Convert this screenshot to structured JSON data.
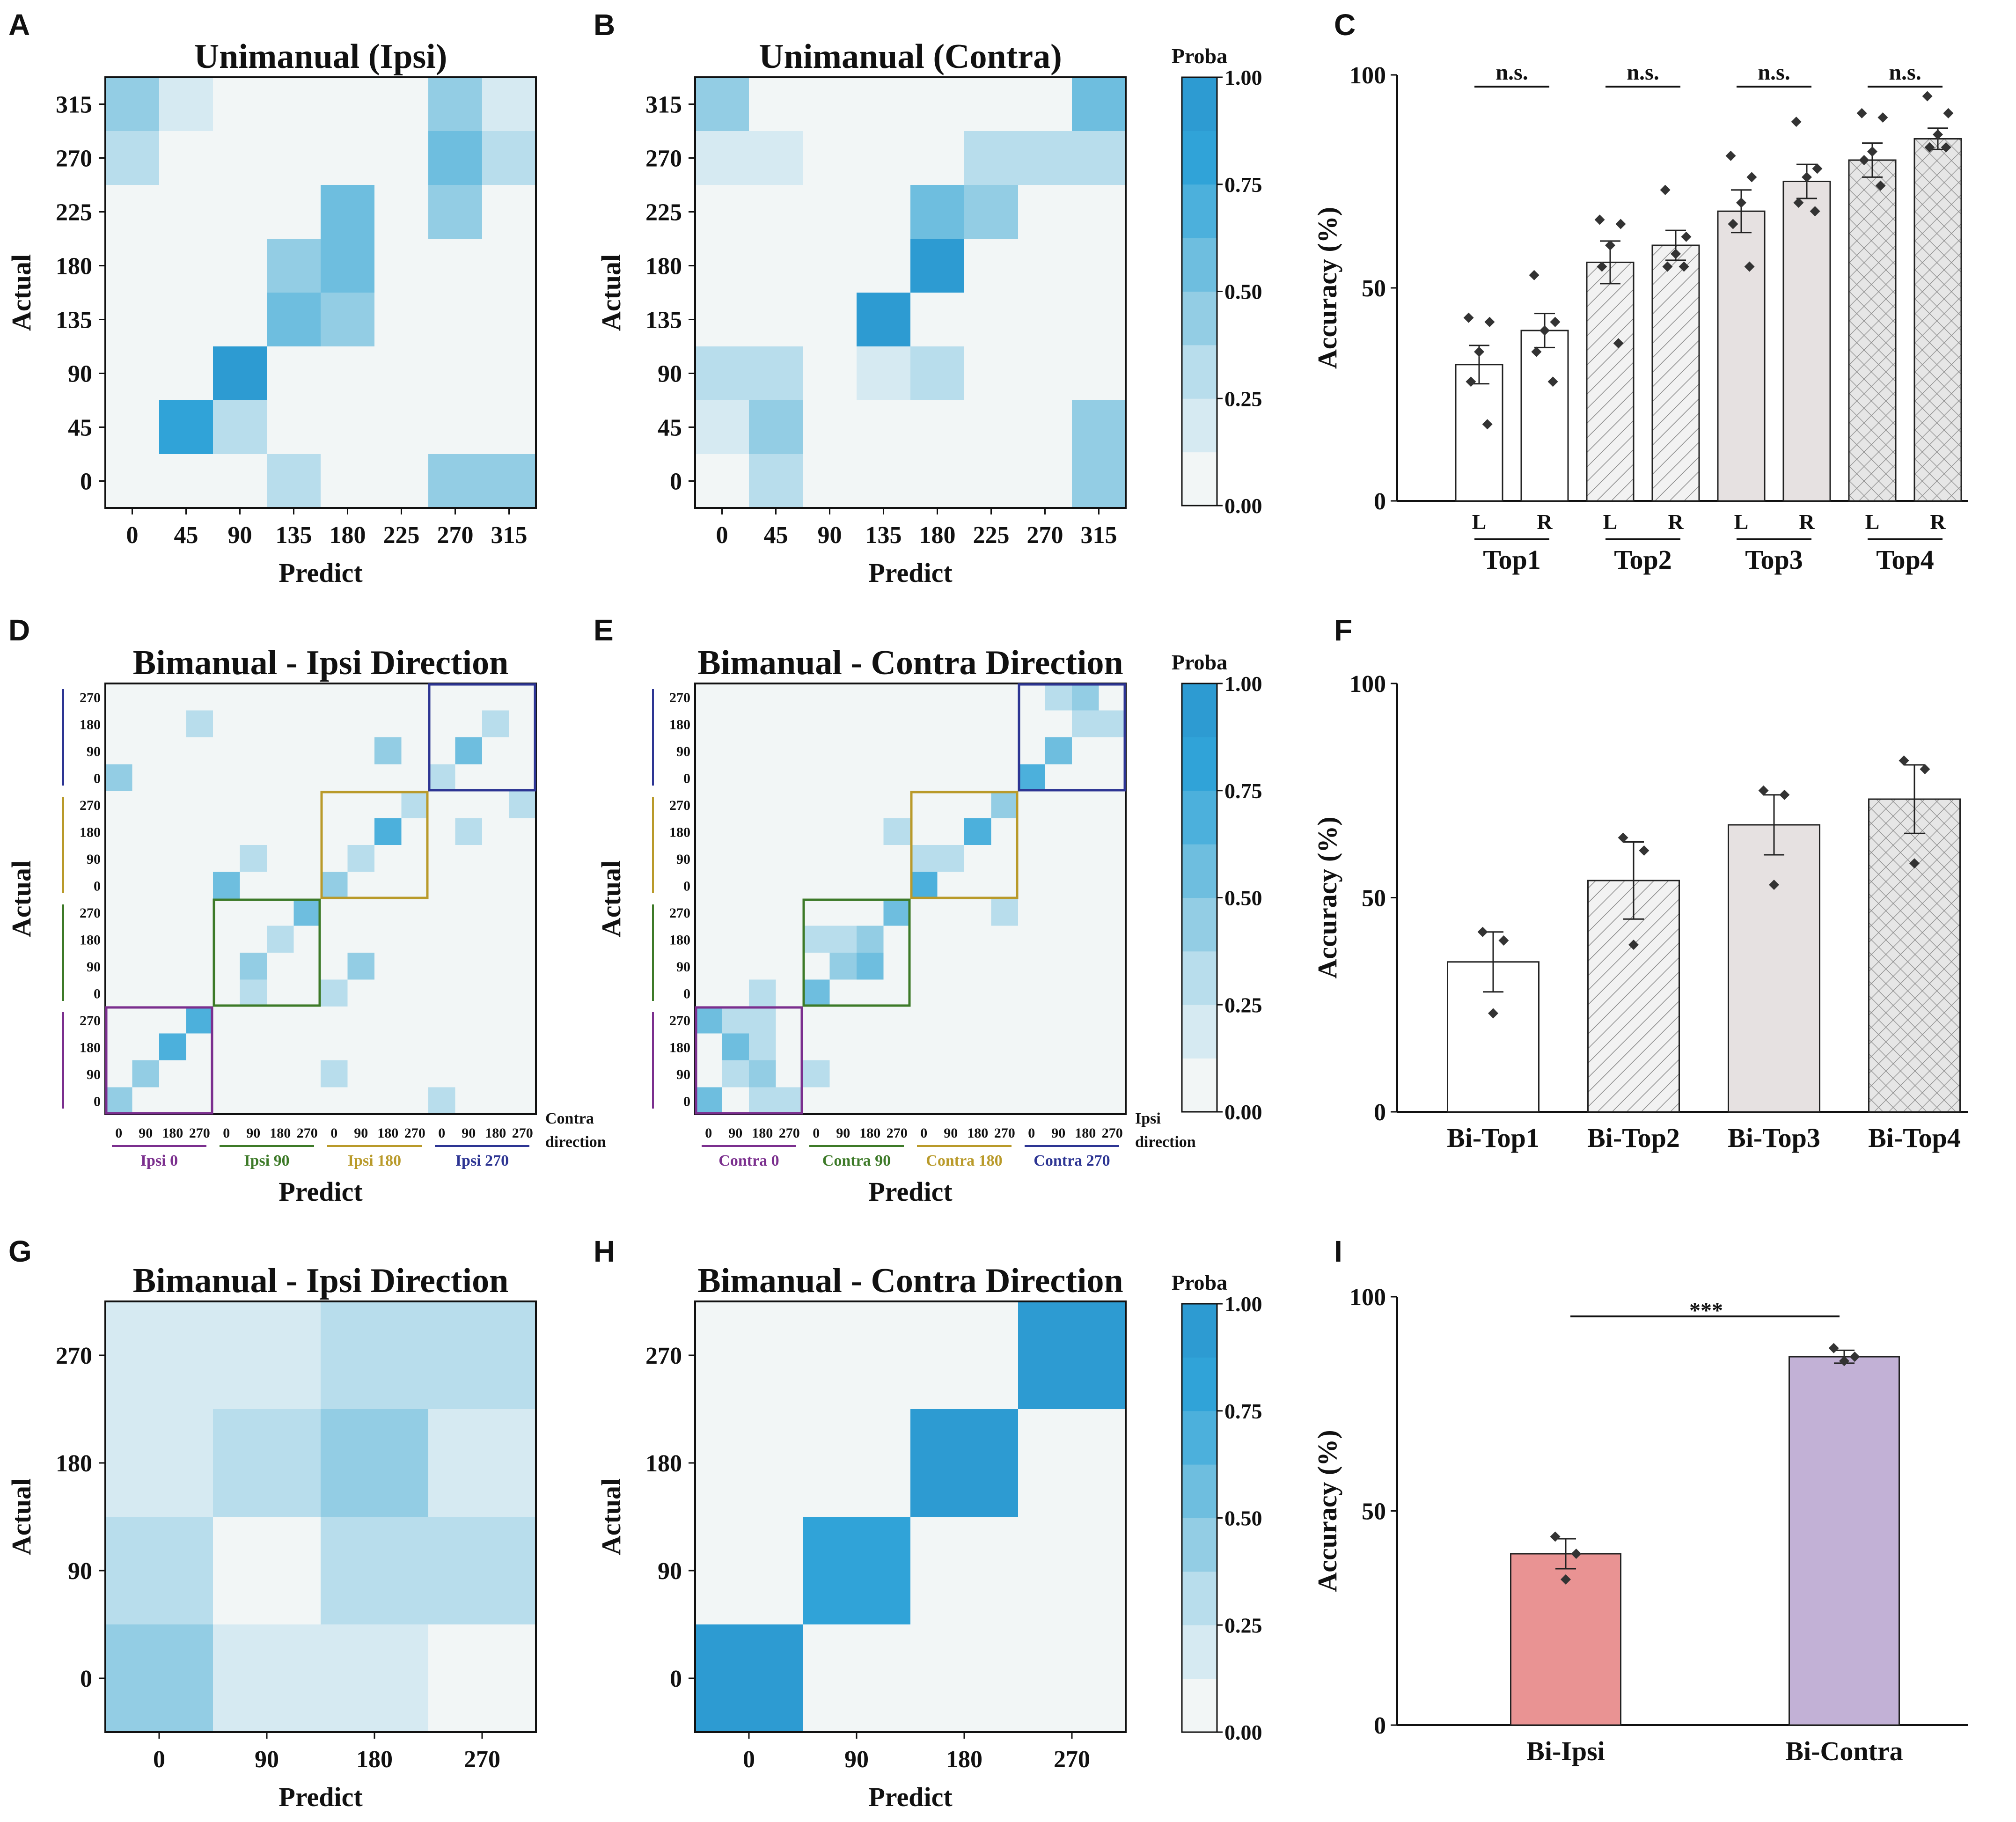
{
  "colorscale": {
    "label": "Proba",
    "ticks": [
      "0.00",
      "0.25",
      "0.50",
      "0.75",
      "1.00"
    ],
    "stops": [
      "#f2f6f6",
      "#d6eaf2",
      "#b8ddec",
      "#93cde4",
      "#6ebedf",
      "#4cb0dc",
      "#30a3d8",
      "#2d9bd2"
    ],
    "tick_values": [
      0,
      0.25,
      0.5,
      0.75,
      1
    ]
  },
  "chart_data": [
    {
      "id": "A",
      "type": "heatmap",
      "panel_letter": "A",
      "title": "Unimanual (Ipsi)",
      "xlabel": "Predict",
      "ylabel": "Actual",
      "xticks": [
        "0",
        "45",
        "90",
        "135",
        "180",
        "225",
        "270",
        "315"
      ],
      "yticks": [
        "315",
        "270",
        "225",
        "180",
        "135",
        "90",
        "45",
        "0"
      ],
      "values": [
        [
          0.4,
          0.15,
          0,
          0,
          0,
          0,
          0.4,
          0.15
        ],
        [
          0.28,
          0,
          0,
          0,
          0,
          0,
          0.55,
          0.3
        ],
        [
          0,
          0,
          0.12,
          0,
          0.5,
          0,
          0.38,
          0
        ],
        [
          0.12,
          0,
          0,
          0.4,
          0.5,
          0.12,
          0,
          0
        ],
        [
          0.12,
          0,
          0,
          0.5,
          0.4,
          0,
          0,
          0
        ],
        [
          0.12,
          0,
          0.9,
          0,
          0,
          0,
          0,
          0
        ],
        [
          0,
          0.75,
          0.28,
          0,
          0,
          0,
          0,
          0
        ],
        [
          0,
          0,
          0,
          0.28,
          0,
          0,
          0.4,
          0.4
        ]
      ]
    },
    {
      "id": "B",
      "type": "heatmap",
      "panel_letter": "B",
      "title": "Unimanual (Contra)",
      "xlabel": "Predict",
      "ylabel": "Actual",
      "xticks": [
        "0",
        "45",
        "90",
        "135",
        "180",
        "225",
        "270",
        "315"
      ],
      "yticks": [
        "315",
        "270",
        "225",
        "180",
        "135",
        "90",
        "45",
        "0"
      ],
      "values": [
        [
          0.38,
          0,
          0,
          0,
          0,
          0,
          0.12,
          0.55
        ],
        [
          0.15,
          0.15,
          0,
          0,
          0,
          0.25,
          0.25,
          0.25
        ],
        [
          0,
          0,
          0,
          0,
          0.5,
          0.4,
          0.12,
          0
        ],
        [
          0,
          0,
          0,
          0.12,
          0.9,
          0,
          0,
          0
        ],
        [
          0,
          0,
          0,
          0.9,
          0,
          0.12,
          0,
          0
        ],
        [
          0.25,
          0.25,
          0,
          0.15,
          0.28,
          0,
          0.12,
          0
        ],
        [
          0.15,
          0.38,
          0.12,
          0,
          0,
          0,
          0,
          0.4
        ],
        [
          0.12,
          0.28,
          0,
          0,
          0,
          0.12,
          0.12,
          0.4
        ]
      ]
    },
    {
      "id": "C",
      "type": "bar",
      "panel_letter": "C",
      "ylabel": "Accuracy (%)",
      "ylim": [
        0,
        100
      ],
      "yticks": [
        0,
        50,
        100
      ],
      "groups": [
        "Top1",
        "Top2",
        "Top3",
        "Top4"
      ],
      "bars": [
        {
          "label": "L",
          "group": "Top1",
          "value": 32,
          "sem": 4.5,
          "points": [
            43,
            42,
            35,
            28,
            18
          ]
        },
        {
          "label": "R",
          "group": "Top1",
          "value": 40,
          "sem": 4,
          "points": [
            53,
            42,
            40,
            35,
            28
          ]
        },
        {
          "label": "L",
          "group": "Top2",
          "value": 56,
          "sem": 5,
          "points": [
            66,
            65,
            60,
            55,
            37
          ]
        },
        {
          "label": "R",
          "group": "Top2",
          "value": 60,
          "sem": 3.5,
          "points": [
            73,
            62,
            58,
            55,
            55
          ]
        },
        {
          "label": "L",
          "group": "Top3",
          "value": 68,
          "sem": 5,
          "points": [
            81,
            76,
            70,
            65,
            55
          ]
        },
        {
          "label": "R",
          "group": "Top3",
          "value": 75,
          "sem": 4,
          "points": [
            89,
            78,
            76,
            70,
            68
          ]
        },
        {
          "label": "L",
          "group": "Top4",
          "value": 80,
          "sem": 4,
          "points": [
            91,
            90,
            82,
            80,
            74
          ]
        },
        {
          "label": "R",
          "group": "Top4",
          "value": 85,
          "sem": 2.5,
          "points": [
            95,
            91,
            86,
            83,
            83
          ]
        }
      ],
      "significance": [
        "n.s.",
        "n.s.",
        "n.s.",
        "n.s."
      ]
    },
    {
      "id": "D",
      "type": "heatmap",
      "panel_letter": "D",
      "title": "Bimanual - Ipsi Direction",
      "xlabel": "Predict",
      "ylabel": "Actual",
      "sub_ticks": [
        "0",
        "90",
        "180",
        "270"
      ],
      "group_labels": [
        "Ipsi 0",
        "Ipsi 90",
        "Ipsi 180",
        "Ipsi 270"
      ],
      "side_label": [
        "Contra",
        "direction"
      ],
      "values": [
        [
          0.1,
          0,
          0,
          0.1,
          0,
          0,
          0,
          0,
          0,
          0,
          0,
          0,
          0,
          0.1,
          0,
          0.1
        ],
        [
          0,
          0.1,
          0.1,
          0.25,
          0,
          0,
          0,
          0,
          0,
          0,
          0,
          0,
          0,
          0.1,
          0.25,
          0.1
        ],
        [
          0,
          0,
          0,
          0,
          0,
          0,
          0,
          0,
          0,
          0,
          0.4,
          0,
          0.12,
          0.6,
          0,
          0
        ],
        [
          0.4,
          0,
          0,
          0,
          0.1,
          0,
          0,
          0,
          0,
          0,
          0,
          0,
          0.25,
          0,
          0,
          0
        ],
        [
          0,
          0,
          0.1,
          0.1,
          0.1,
          0,
          0,
          0.1,
          0,
          0,
          0,
          0.25,
          0,
          0,
          0,
          0.25
        ],
        [
          0,
          0,
          0,
          0,
          0,
          0,
          0,
          0,
          0,
          0,
          0.7,
          0,
          0,
          0.25,
          0,
          0
        ],
        [
          0,
          0.1,
          0.1,
          0,
          0.1,
          0.25,
          0,
          0,
          0.1,
          0.25,
          0,
          0,
          0,
          0,
          0,
          0
        ],
        [
          0,
          0,
          0,
          0,
          0.6,
          0,
          0,
          0,
          0.4,
          0.1,
          0,
          0,
          0,
          0,
          0,
          0
        ],
        [
          0,
          0,
          0,
          0.1,
          0.1,
          0,
          0.1,
          0.6,
          0,
          0,
          0.1,
          0,
          0,
          0,
          0,
          0
        ],
        [
          0,
          0.1,
          0.1,
          0.1,
          0,
          0.1,
          0.25,
          0,
          0,
          0,
          0.1,
          0,
          0,
          0,
          0.1,
          0
        ],
        [
          0,
          0,
          0,
          0,
          0.1,
          0.4,
          0,
          0,
          0,
          0.4,
          0,
          0,
          0,
          0,
          0,
          0
        ],
        [
          0,
          0,
          0,
          0,
          0,
          0.25,
          0,
          0,
          0.25,
          0,
          0,
          0,
          0.1,
          0.1,
          0,
          0.1
        ],
        [
          0,
          0,
          0,
          0.7,
          0,
          0,
          0,
          0,
          0,
          0,
          0,
          0,
          0,
          0,
          0,
          0.1
        ],
        [
          0,
          0,
          0.7,
          0,
          0,
          0,
          0,
          0.1,
          0,
          0,
          0,
          0,
          0,
          0,
          0.1,
          0
        ],
        [
          0,
          0.4,
          0,
          0,
          0,
          0,
          0,
          0,
          0.25,
          0.1,
          0.1,
          0,
          0,
          0,
          0,
          0
        ],
        [
          0.4,
          0,
          0,
          0.1,
          0,
          0,
          0,
          0,
          0,
          0,
          0,
          0,
          0.25,
          0,
          0,
          0
        ]
      ]
    },
    {
      "id": "E",
      "type": "heatmap",
      "panel_letter": "E",
      "title": "Bimanual - Contra Direction",
      "xlabel": "Predict",
      "ylabel": "Actual",
      "sub_ticks": [
        "0",
        "90",
        "180",
        "270"
      ],
      "group_labels": [
        "Contra 0",
        "Contra 90",
        "Contra 180",
        "Contra 270"
      ],
      "side_label": [
        "Ipsi",
        "direction"
      ],
      "values": [
        [
          0.1,
          0,
          0,
          0.1,
          0,
          0,
          0,
          0,
          0,
          0,
          0,
          0,
          0.1,
          0.25,
          0.4,
          0.1
        ],
        [
          0,
          0.1,
          0,
          0,
          0,
          0,
          0,
          0,
          0,
          0,
          0,
          0,
          0.1,
          0.1,
          0.25,
          0.25
        ],
        [
          0,
          0,
          0,
          0,
          0,
          0.1,
          0,
          0,
          0,
          0,
          0.1,
          0,
          0,
          0.6,
          0,
          0
        ],
        [
          0,
          0,
          0,
          0,
          0,
          0,
          0,
          0,
          0,
          0,
          0,
          0,
          0.7,
          0.1,
          0,
          0.1
        ],
        [
          0,
          0,
          0,
          0.1,
          0.1,
          0,
          0,
          0,
          0,
          0,
          0,
          0.4,
          0.1,
          0,
          0,
          0
        ],
        [
          0,
          0,
          0,
          0,
          0,
          0,
          0,
          0.25,
          0.1,
          0,
          0.7,
          0,
          0,
          0,
          0,
          0
        ],
        [
          0,
          0,
          0,
          0,
          0,
          0.1,
          0,
          0,
          0.25,
          0.25,
          0,
          0,
          0,
          0,
          0,
          0
        ],
        [
          0,
          0,
          0,
          0,
          0,
          0,
          0,
          0,
          0.7,
          0,
          0,
          0,
          0,
          0.1,
          0,
          0
        ],
        [
          0,
          0,
          0,
          0,
          0,
          0,
          0,
          0.6,
          0,
          0,
          0,
          0.25,
          0,
          0,
          0,
          0
        ],
        [
          0,
          0.1,
          0,
          0,
          0.25,
          0.25,
          0.4,
          0,
          0,
          0,
          0,
          0,
          0,
          0,
          0,
          0
        ],
        [
          0.1,
          0,
          0,
          0,
          0.1,
          0.4,
          0.5,
          0,
          0,
          0,
          0,
          0,
          0,
          0,
          0,
          0
        ],
        [
          0,
          0,
          0.25,
          0,
          0.6,
          0,
          0,
          0,
          0,
          0,
          0.1,
          0,
          0,
          0,
          0,
          0
        ],
        [
          0.6,
          0.25,
          0.25,
          0,
          0,
          0,
          0,
          0,
          0,
          0,
          0,
          0,
          0,
          0,
          0,
          0
        ],
        [
          0,
          0.5,
          0.25,
          0,
          0,
          0,
          0.1,
          0,
          0,
          0,
          0,
          0,
          0,
          0,
          0,
          0
        ],
        [
          0,
          0.25,
          0.4,
          0,
          0.25,
          0,
          0,
          0,
          0,
          0,
          0,
          0,
          0,
          0,
          0.1,
          0.1
        ],
        [
          0.6,
          0,
          0.25,
          0.25,
          0,
          0,
          0,
          0,
          0,
          0,
          0,
          0,
          0.1,
          0,
          0,
          0
        ]
      ]
    },
    {
      "id": "F",
      "type": "bar",
      "panel_letter": "F",
      "ylabel": "Accuracy (%)",
      "ylim": [
        0,
        100
      ],
      "yticks": [
        0,
        50,
        100
      ],
      "bars": [
        {
          "label": "Bi-Top1",
          "value": 35,
          "sem": 7,
          "points": [
            42,
            40,
            23
          ]
        },
        {
          "label": "Bi-Top2",
          "value": 54,
          "sem": 9,
          "points": [
            64,
            61,
            39
          ]
        },
        {
          "label": "Bi-Top3",
          "value": 67,
          "sem": 7,
          "points": [
            75,
            74,
            53
          ]
        },
        {
          "label": "Bi-Top4",
          "value": 73,
          "sem": 8,
          "points": [
            82,
            80,
            58
          ]
        }
      ]
    },
    {
      "id": "G",
      "type": "heatmap",
      "panel_letter": "G",
      "title": "Bimanual - Ipsi Direction",
      "xlabel": "Predict",
      "ylabel": "Actual",
      "xticks": [
        "0",
        "90",
        "180",
        "270"
      ],
      "yticks": [
        "270",
        "180",
        "90",
        "0"
      ],
      "values": [
        [
          0.15,
          0.15,
          0.28,
          0.28
        ],
        [
          0.15,
          0.28,
          0.38,
          0.15
        ],
        [
          0.28,
          0,
          0.28,
          0.28
        ],
        [
          0.45,
          0.15,
          0.15,
          0
        ]
      ]
    },
    {
      "id": "H",
      "type": "heatmap",
      "panel_letter": "H",
      "title": "Bimanual - Contra Direction",
      "xlabel": "Predict",
      "ylabel": "Actual",
      "xticks": [
        "0",
        "90",
        "180",
        "270"
      ],
      "yticks": [
        "270",
        "180",
        "90",
        "0"
      ],
      "values": [
        [
          0,
          0,
          0,
          0.9
        ],
        [
          0,
          0,
          0.9,
          0
        ],
        [
          0,
          0.8,
          0.12,
          0
        ],
        [
          0.9,
          0,
          0,
          0
        ]
      ]
    },
    {
      "id": "I",
      "type": "bar",
      "panel_letter": "I",
      "ylabel": "Accuracy (%)",
      "ylim": [
        0,
        100
      ],
      "yticks": [
        0,
        50,
        100
      ],
      "bars": [
        {
          "label": "Bi-Ipsi",
          "value": 40,
          "sem": 3.5,
          "points": [
            44,
            40,
            34
          ],
          "color": "#e99393"
        },
        {
          "label": "Bi-Contra",
          "value": 86,
          "sem": 1.5,
          "points": [
            88,
            86,
            85
          ],
          "color": "#c2b1d6"
        }
      ],
      "significance": [
        "***"
      ]
    }
  ]
}
